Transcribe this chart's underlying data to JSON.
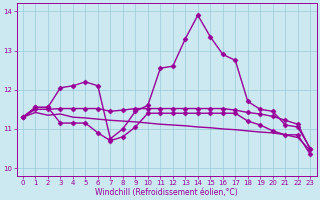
{
  "xlabel": "Windchill (Refroidissement éolien,°C)",
  "background_color": "#cce8f0",
  "grid_color": "#99ccdd",
  "line_color": "#990099",
  "x": [
    0,
    1,
    2,
    3,
    4,
    5,
    6,
    7,
    8,
    9,
    10,
    11,
    12,
    13,
    14,
    15,
    16,
    17,
    18,
    19,
    20,
    21,
    22,
    23
  ],
  "ylim": [
    9.8,
    14.2
  ],
  "xlim": [
    -0.5,
    23.5
  ],
  "yticks": [
    10,
    11,
    12,
    13,
    14
  ],
  "xticks": [
    0,
    1,
    2,
    3,
    4,
    5,
    6,
    7,
    8,
    9,
    10,
    11,
    12,
    13,
    14,
    15,
    16,
    17,
    18,
    19,
    20,
    21,
    22,
    23
  ],
  "series": [
    [
      11.3,
      11.55,
      11.55,
      12.05,
      12.1,
      12.2,
      12.1,
      10.75,
      11.0,
      11.45,
      11.6,
      12.55,
      12.6,
      13.3,
      13.9,
      13.35,
      12.9,
      12.75,
      11.7,
      11.5,
      11.45,
      11.1,
      11.05,
      10.5
    ],
    [
      11.3,
      11.55,
      11.55,
      11.15,
      11.15,
      11.15,
      10.9,
      10.7,
      10.8,
      11.05,
      11.4,
      11.4,
      11.4,
      11.4,
      11.4,
      11.4,
      11.4,
      11.4,
      11.2,
      11.1,
      10.95,
      10.85,
      10.85,
      10.35
    ],
    [
      11.3,
      11.42,
      11.35,
      11.38,
      11.3,
      11.28,
      11.25,
      11.22,
      11.2,
      11.18,
      11.15,
      11.12,
      11.1,
      11.08,
      11.05,
      11.03,
      11.0,
      10.98,
      10.95,
      10.92,
      10.9,
      10.85,
      10.78,
      10.45
    ],
    [
      11.3,
      11.5,
      11.5,
      11.52,
      11.52,
      11.52,
      11.52,
      11.45,
      11.48,
      11.52,
      11.52,
      11.52,
      11.52,
      11.52,
      11.52,
      11.52,
      11.52,
      11.48,
      11.42,
      11.38,
      11.32,
      11.22,
      11.12,
      10.48
    ]
  ],
  "series_styles": [
    {
      "marker": "D",
      "markersize": 2.5,
      "linewidth": 1.0
    },
    {
      "marker": "D",
      "markersize": 2.5,
      "linewidth": 1.0
    },
    {
      "marker": null,
      "markersize": 0,
      "linewidth": 1.0
    },
    {
      "marker": "D",
      "markersize": 2.5,
      "linewidth": 1.0
    }
  ]
}
